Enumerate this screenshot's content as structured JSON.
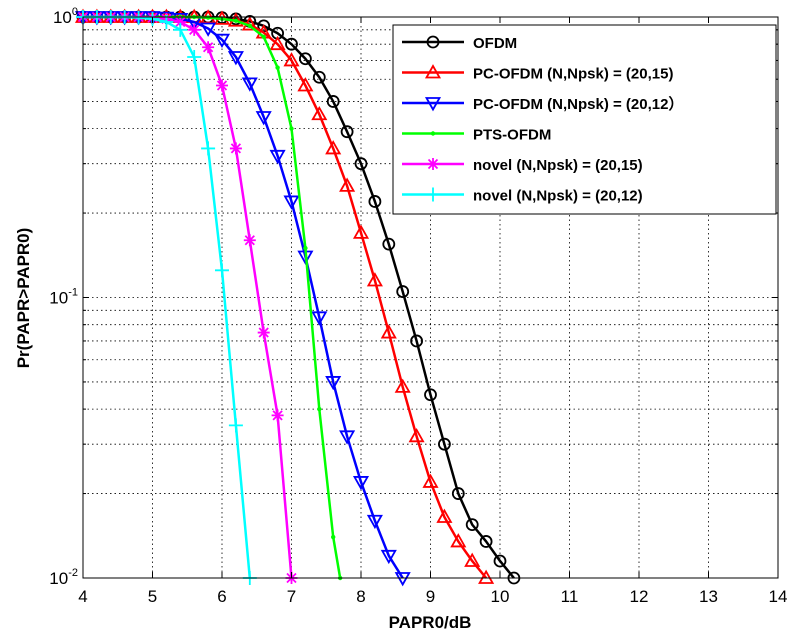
{
  "chart_data": {
    "type": "line",
    "title": "",
    "xlabel": "PAPR0/dB",
    "ylabel": "Pr(PAPR>PAPR0)",
    "xlim": [
      4,
      14
    ],
    "ylim": [
      0.01,
      1
    ],
    "yscale": "log",
    "grid": true,
    "legend_position": "top-right",
    "x_ticks": [
      4,
      5,
      6,
      7,
      8,
      9,
      10,
      11,
      12,
      13,
      14
    ],
    "x_tick_labels": [
      "4",
      "5",
      "6",
      "7",
      "8",
      "9",
      "10",
      "11",
      "12",
      "13",
      "14"
    ],
    "y_ticks": [
      {
        "value": 1,
        "base": "10",
        "exp": "0"
      },
      {
        "value": 0.1,
        "base": "10",
        "exp": "-1"
      },
      {
        "value": 0.01,
        "base": "10",
        "exp": "-2"
      }
    ],
    "series": [
      {
        "name": "OFDM",
        "color": "#000000",
        "marker": "circle",
        "x": [
          4.0,
          4.2,
          4.4,
          4.6,
          4.8,
          5.0,
          5.2,
          5.4,
          5.6,
          5.8,
          6.0,
          6.2,
          6.4,
          6.6,
          6.8,
          7.0,
          7.2,
          7.4,
          7.6,
          7.8,
          8.0,
          8.2,
          8.4,
          8.6,
          8.8,
          9.0,
          9.2,
          9.4,
          9.6,
          9.8,
          10.0,
          10.2
        ],
        "y": [
          1.0,
          1.0,
          1.0,
          1.0,
          1.0,
          1.0,
          1.0,
          1.0,
          1.0,
          1.0,
          0.995,
          0.985,
          0.965,
          0.93,
          0.875,
          0.8,
          0.71,
          0.61,
          0.5,
          0.39,
          0.3,
          0.22,
          0.155,
          0.105,
          0.07,
          0.045,
          0.03,
          0.02,
          0.0155,
          0.0135,
          0.0115,
          0.01
        ]
      },
      {
        "name": "PC-OFDM (N,Npsk) = (20,15)",
        "color": "#ff0000",
        "marker": "triangle-up",
        "x": [
          4.0,
          4.2,
          4.4,
          4.6,
          4.8,
          5.0,
          5.2,
          5.4,
          5.6,
          5.8,
          6.0,
          6.2,
          6.4,
          6.6,
          6.8,
          7.0,
          7.2,
          7.4,
          7.6,
          7.8,
          8.0,
          8.2,
          8.4,
          8.6,
          8.8,
          9.0,
          9.2,
          9.4,
          9.6,
          9.8
        ],
        "y": [
          1.0,
          1.0,
          1.0,
          1.0,
          1.0,
          1.0,
          1.0,
          1.0,
          1.0,
          0.995,
          0.985,
          0.97,
          0.94,
          0.88,
          0.8,
          0.7,
          0.57,
          0.45,
          0.34,
          0.25,
          0.17,
          0.115,
          0.075,
          0.048,
          0.032,
          0.022,
          0.0165,
          0.0135,
          0.0115,
          0.01
        ]
      },
      {
        "name": "PC-OFDM (N,Npsk) = (20,12）",
        "color": "#0000ff",
        "marker": "triangle-down",
        "x": [
          4.0,
          4.2,
          4.4,
          4.6,
          4.8,
          5.0,
          5.2,
          5.4,
          5.6,
          5.8,
          6.0,
          6.2,
          6.4,
          6.6,
          6.8,
          7.0,
          7.2,
          7.4,
          7.6,
          7.8,
          8.0,
          8.2,
          8.4,
          8.6
        ],
        "y": [
          1.0,
          1.0,
          1.0,
          1.0,
          1.0,
          1.0,
          0.995,
          0.985,
          0.96,
          0.91,
          0.83,
          0.72,
          0.58,
          0.44,
          0.32,
          0.22,
          0.14,
          0.085,
          0.05,
          0.032,
          0.022,
          0.016,
          0.012,
          0.01
        ]
      },
      {
        "name": "PTS-OFDM",
        "color": "#00ff00",
        "marker": "point",
        "x": [
          4.0,
          4.2,
          4.4,
          4.6,
          4.8,
          5.0,
          5.2,
          5.4,
          5.6,
          5.8,
          6.0,
          6.2,
          6.4,
          6.6,
          6.8,
          7.0,
          7.2,
          7.4,
          7.6,
          7.7
        ],
        "y": [
          1.0,
          1.0,
          1.0,
          1.0,
          1.0,
          1.0,
          1.0,
          1.0,
          1.0,
          0.995,
          0.985,
          0.97,
          0.93,
          0.85,
          0.66,
          0.4,
          0.15,
          0.04,
          0.014,
          0.01
        ]
      },
      {
        "name": "novel (N,Npsk) = (20,15)",
        "color": "#ff00ff",
        "marker": "star",
        "x": [
          4.0,
          4.2,
          4.4,
          4.6,
          4.8,
          5.0,
          5.2,
          5.4,
          5.6,
          5.8,
          6.0,
          6.2,
          6.4,
          6.6,
          6.8,
          7.0
        ],
        "y": [
          1.0,
          1.0,
          1.0,
          1.0,
          1.0,
          0.995,
          0.985,
          0.96,
          0.9,
          0.78,
          0.57,
          0.34,
          0.16,
          0.075,
          0.038,
          0.01
        ]
      },
      {
        "name": "novel (N,Npsk) = (20,12)",
        "color": "#00ffff",
        "marker": "plus",
        "x": [
          4.0,
          4.2,
          4.4,
          4.6,
          4.8,
          5.0,
          5.2,
          5.4,
          5.6,
          5.8,
          6.0,
          6.2,
          6.4
        ],
        "y": [
          1.0,
          1.0,
          1.0,
          1.0,
          0.995,
          0.985,
          0.96,
          0.9,
          0.72,
          0.34,
          0.125,
          0.035,
          0.01
        ]
      }
    ]
  }
}
